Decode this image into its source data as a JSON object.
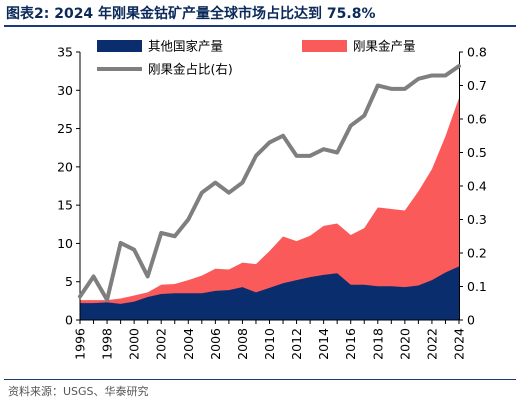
{
  "header": {
    "title": "图表2:  2024 年刚果金钴矿产量全球市场占比达到 75.8%"
  },
  "footer": {
    "source": "资料来源：USGS、华泰研究"
  },
  "chart_data": {
    "type": "area",
    "x": [
      1996,
      1997,
      1998,
      1999,
      2000,
      2001,
      2002,
      2003,
      2004,
      2005,
      2006,
      2007,
      2008,
      2009,
      2010,
      2011,
      2012,
      2013,
      2014,
      2015,
      2016,
      2017,
      2018,
      2019,
      2020,
      2021,
      2022,
      2023,
      2024
    ],
    "x_tick_labels": [
      "1996",
      "1998",
      "2000",
      "2002",
      "2004",
      "2006",
      "2008",
      "2010",
      "2012",
      "2014",
      "2016",
      "2018",
      "2020",
      "2022",
      "2024"
    ],
    "y_left": {
      "ylim": [
        0,
        35
      ],
      "ticks": [
        "0",
        "5",
        "10",
        "15",
        "20",
        "25",
        "30",
        "35"
      ]
    },
    "y_right": {
      "ylim": [
        0,
        0.8
      ],
      "ticks": [
        "0",
        "0.1",
        "0.2",
        "0.3",
        "0.4",
        "0.5",
        "0.6",
        "0.7",
        "0.8"
      ]
    },
    "series": [
      {
        "name": "其他国家产量",
        "kind": "area",
        "axis": "left",
        "color": "#0a2d6e",
        "values": [
          2.2,
          2.2,
          2.3,
          2.1,
          2.4,
          3.0,
          3.4,
          3.5,
          3.5,
          3.5,
          3.8,
          3.9,
          4.3,
          3.6,
          4.2,
          4.8,
          5.2,
          5.6,
          5.9,
          6.1,
          4.6,
          4.6,
          4.4,
          4.4,
          4.3,
          4.5,
          5.2,
          6.2,
          7.0
        ]
      },
      {
        "name": "刚果金产量",
        "kind": "area",
        "axis": "left",
        "color": "#fb5a5a",
        "values": [
          2.6,
          2.6,
          2.6,
          2.8,
          3.2,
          3.6,
          4.6,
          4.7,
          5.2,
          5.8,
          6.7,
          6.6,
          7.5,
          7.3,
          9.0,
          10.9,
          10.3,
          11.0,
          12.3,
          12.6,
          11.1,
          12.0,
          14.7,
          14.5,
          14.3,
          16.8,
          19.7,
          24.0,
          29.0
        ]
      },
      {
        "name": "刚果金占比(右)",
        "kind": "line",
        "axis": "right",
        "color": "#7f7f7f",
        "values": [
          0.07,
          0.13,
          0.06,
          0.23,
          0.21,
          0.13,
          0.26,
          0.25,
          0.3,
          0.38,
          0.41,
          0.38,
          0.41,
          0.49,
          0.53,
          0.55,
          0.49,
          0.49,
          0.51,
          0.5,
          0.58,
          0.61,
          0.7,
          0.69,
          0.69,
          0.72,
          0.73,
          0.73,
          0.758
        ]
      }
    ],
    "legend_position": "top"
  }
}
